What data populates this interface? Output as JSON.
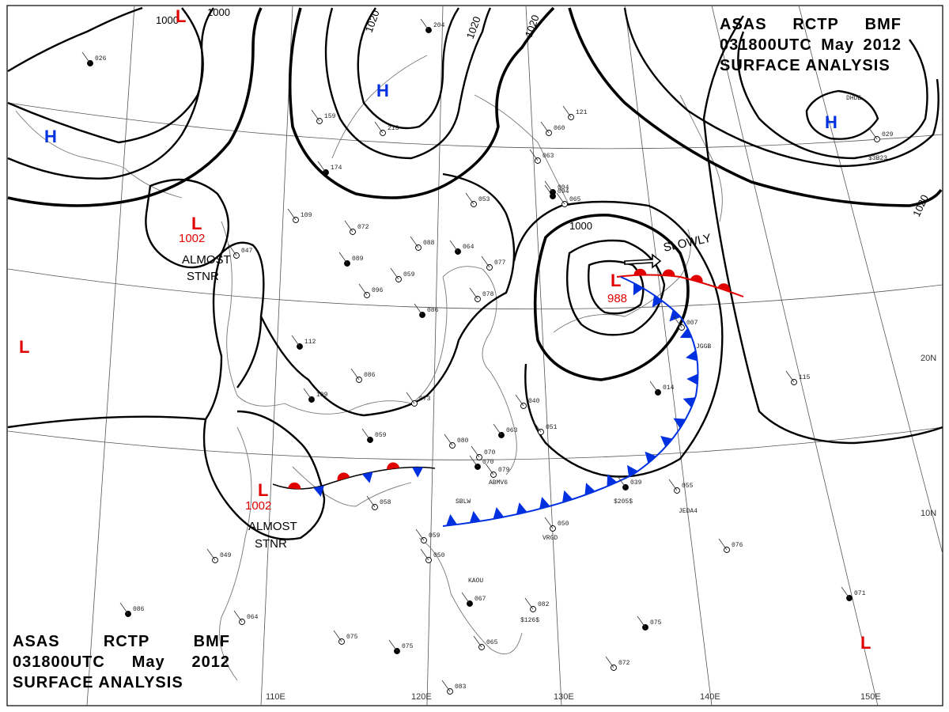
{
  "header_top": {
    "line1": [
      "ASAS",
      "RCTP",
      "BMF"
    ],
    "line2": [
      "031800UTC",
      "May",
      "2012"
    ],
    "line3": "SURFACE ANALYSIS"
  },
  "header_bottom": {
    "line1": [
      "ASAS",
      "RCTP",
      "BMF"
    ],
    "line2": [
      "031800UTC",
      "May",
      "2012"
    ],
    "line3": "SURFACE ANALYSIS"
  },
  "longitude_labels": [
    "110E",
    "120E",
    "130E",
    "140E",
    "150E"
  ],
  "latitude_labels": [
    "10N",
    "20N"
  ],
  "isobar_labels": [
    "1000",
    "1000",
    "1020",
    "1020",
    "1020",
    "1000",
    "1020"
  ],
  "pressure_centers": [
    {
      "symbol": "L",
      "color": "#e00000"
    },
    {
      "symbol": "H",
      "color": "#0030e0"
    },
    {
      "symbol": "H",
      "color": "#0030e0"
    },
    {
      "symbol": "L",
      "color": "#e00000",
      "value": "1002",
      "note": [
        "ALMOST",
        "STNR"
      ]
    },
    {
      "symbol": "H",
      "color": "#0030e0"
    },
    {
      "symbol": "L",
      "color": "#e00000"
    },
    {
      "symbol": "L",
      "color": "#e00000",
      "value": "988",
      "movement": "SLOWLY"
    },
    {
      "symbol": "L",
      "color": "#e00000",
      "value": "1002",
      "note": [
        "ALMOST",
        "STNR"
      ]
    },
    {
      "symbol": "L",
      "color": "#e00000"
    }
  ],
  "fronts": [
    {
      "type": "warm",
      "color": "#e00000"
    },
    {
      "type": "cold",
      "color": "#0030e0"
    },
    {
      "type": "stationary"
    }
  ],
  "station_plots": [
    "026",
    "159",
    "213",
    "174",
    "109",
    "072",
    "089",
    "096",
    "059",
    "112",
    "086",
    "073",
    "109",
    "047",
    "088",
    "064",
    "077",
    "078",
    "086",
    "053",
    "063",
    "094",
    "065",
    "121",
    "204",
    "060",
    "115",
    "014",
    "007",
    "051",
    "063",
    "040",
    "079",
    "070",
    "070",
    "080",
    "059",
    "058",
    "049",
    "086",
    "064",
    "075",
    "075",
    "083",
    "050",
    "067",
    "065",
    "082",
    "075",
    "072",
    "076",
    "071",
    "055",
    "050",
    "039",
    "029",
    "059",
    "004"
  ],
  "ship_ids": [
    "JGGB",
    "ABMV6",
    "SBLW",
    "JEDA4",
    "VRGD",
    "KAOU",
    "$205$",
    "$126$",
    "$3B23",
    "DHDE"
  ]
}
